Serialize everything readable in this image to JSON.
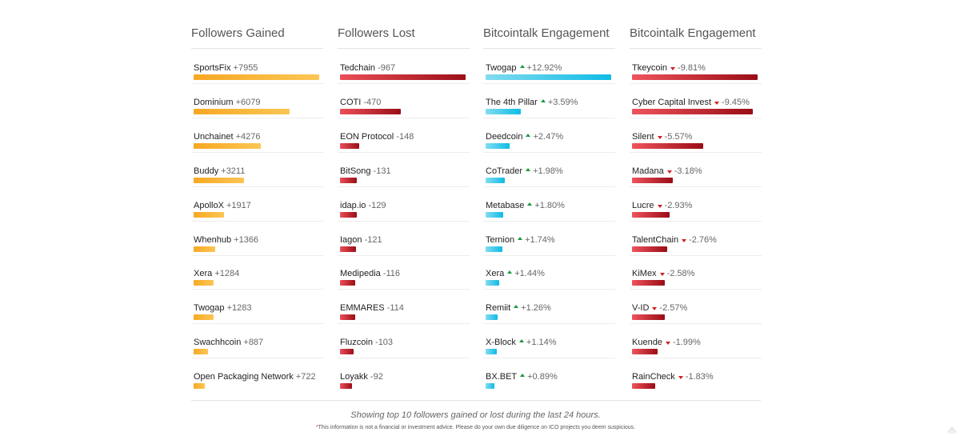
{
  "colors": {
    "gained": [
      "#f7a823",
      "#fbc655"
    ],
    "lost": [
      "#eb4f58",
      "#9b0e18"
    ],
    "engagement_up": [
      "#83dcef",
      "#0fbbe6"
    ],
    "engagement_down": [
      "#ef545d",
      "#9a0c16"
    ],
    "arrow_up": "#1a9a3a",
    "arrow_down": "#d21f1f"
  },
  "columns": [
    {
      "title": "Followers Gained",
      "kind": "gained",
      "items": [
        {
          "name": "SportsFix",
          "value": "+7955",
          "magnitude": 7955
        },
        {
          "name": "Dominium",
          "value": "+6079",
          "magnitude": 6079
        },
        {
          "name": "Unchainet",
          "value": "+4276",
          "magnitude": 4276
        },
        {
          "name": "Buddy",
          "value": "+3211",
          "magnitude": 3211
        },
        {
          "name": "ApolloX",
          "value": "+1917",
          "magnitude": 1917
        },
        {
          "name": "Whenhub",
          "value": "+1366",
          "magnitude": 1366
        },
        {
          "name": "Xera",
          "value": "+1284",
          "magnitude": 1284
        },
        {
          "name": "Twogap",
          "value": "+1283",
          "magnitude": 1283
        },
        {
          "name": "Swachhcoin",
          "value": "+887",
          "magnitude": 887
        },
        {
          "name": "Open Packaging Network",
          "value": "+722",
          "magnitude": 722
        }
      ]
    },
    {
      "title": "Followers Lost",
      "kind": "lost",
      "items": [
        {
          "name": "Tedchain",
          "value": "-967",
          "magnitude": 967
        },
        {
          "name": "COTI",
          "value": "-470",
          "magnitude": 470
        },
        {
          "name": "EON Protocol",
          "value": "-148",
          "magnitude": 148
        },
        {
          "name": "BitSong",
          "value": "-131",
          "magnitude": 131
        },
        {
          "name": "idap.io",
          "value": "-129",
          "magnitude": 129
        },
        {
          "name": "Iagon",
          "value": "-121",
          "magnitude": 121
        },
        {
          "name": "Medipedia",
          "value": "-116",
          "magnitude": 116
        },
        {
          "name": "EMMARES",
          "value": "-114",
          "magnitude": 114
        },
        {
          "name": "Fluzcoin",
          "value": "-103",
          "magnitude": 103
        },
        {
          "name": "Loyakk",
          "value": "-92",
          "magnitude": 92
        }
      ]
    },
    {
      "title": "Bitcointalk Engagement",
      "kind": "engagement_up",
      "items": [
        {
          "name": "Twogap",
          "value": "+12.92%",
          "magnitude": 12.92
        },
        {
          "name": "The 4th Pillar",
          "value": "+3.59%",
          "magnitude": 3.59
        },
        {
          "name": "Deedcoin",
          "value": "+2.47%",
          "magnitude": 2.47
        },
        {
          "name": "CoTrader",
          "value": "+1.98%",
          "magnitude": 1.98
        },
        {
          "name": "Metabase",
          "value": "+1.80%",
          "magnitude": 1.8
        },
        {
          "name": "Ternion",
          "value": "+1.74%",
          "magnitude": 1.74
        },
        {
          "name": "Xera",
          "value": "+1.44%",
          "magnitude": 1.44
        },
        {
          "name": "Remiit",
          "value": "+1.26%",
          "magnitude": 1.26
        },
        {
          "name": "X-Block",
          "value": "+1.14%",
          "magnitude": 1.14
        },
        {
          "name": "BX.BET",
          "value": "+0.89%",
          "magnitude": 0.89
        }
      ]
    },
    {
      "title": "Bitcointalk Engagement",
      "kind": "engagement_down",
      "items": [
        {
          "name": "Tkeycoin",
          "value": "-9.81%",
          "magnitude": 9.81
        },
        {
          "name": "Cyber Capital Invest",
          "value": "-9.45%",
          "magnitude": 9.45
        },
        {
          "name": "Silent",
          "value": "-5.57%",
          "magnitude": 5.57
        },
        {
          "name": "Madana",
          "value": "-3.18%",
          "magnitude": 3.18
        },
        {
          "name": "Lucre",
          "value": "-2.93%",
          "magnitude": 2.93
        },
        {
          "name": "TalentChain",
          "value": "-2.76%",
          "magnitude": 2.76
        },
        {
          "name": "KiMex",
          "value": "-2.58%",
          "magnitude": 2.58
        },
        {
          "name": "V-ID",
          "value": "-2.57%",
          "magnitude": 2.57
        },
        {
          "name": "Kuende",
          "value": "-1.99%",
          "magnitude": 1.99
        },
        {
          "name": "RainCheck",
          "value": "-1.83%",
          "magnitude": 1.83
        }
      ]
    }
  ],
  "footer": {
    "caption": "Showing top 10 followers gained or lost during the last 24 hours.",
    "disclaimer_mark": "*",
    "disclaimer": "This information is not a financial or investment advice. Please do your own due diligence on ICO projects you deem suspicious."
  },
  "corner_icon": "scroll-top-icon"
}
